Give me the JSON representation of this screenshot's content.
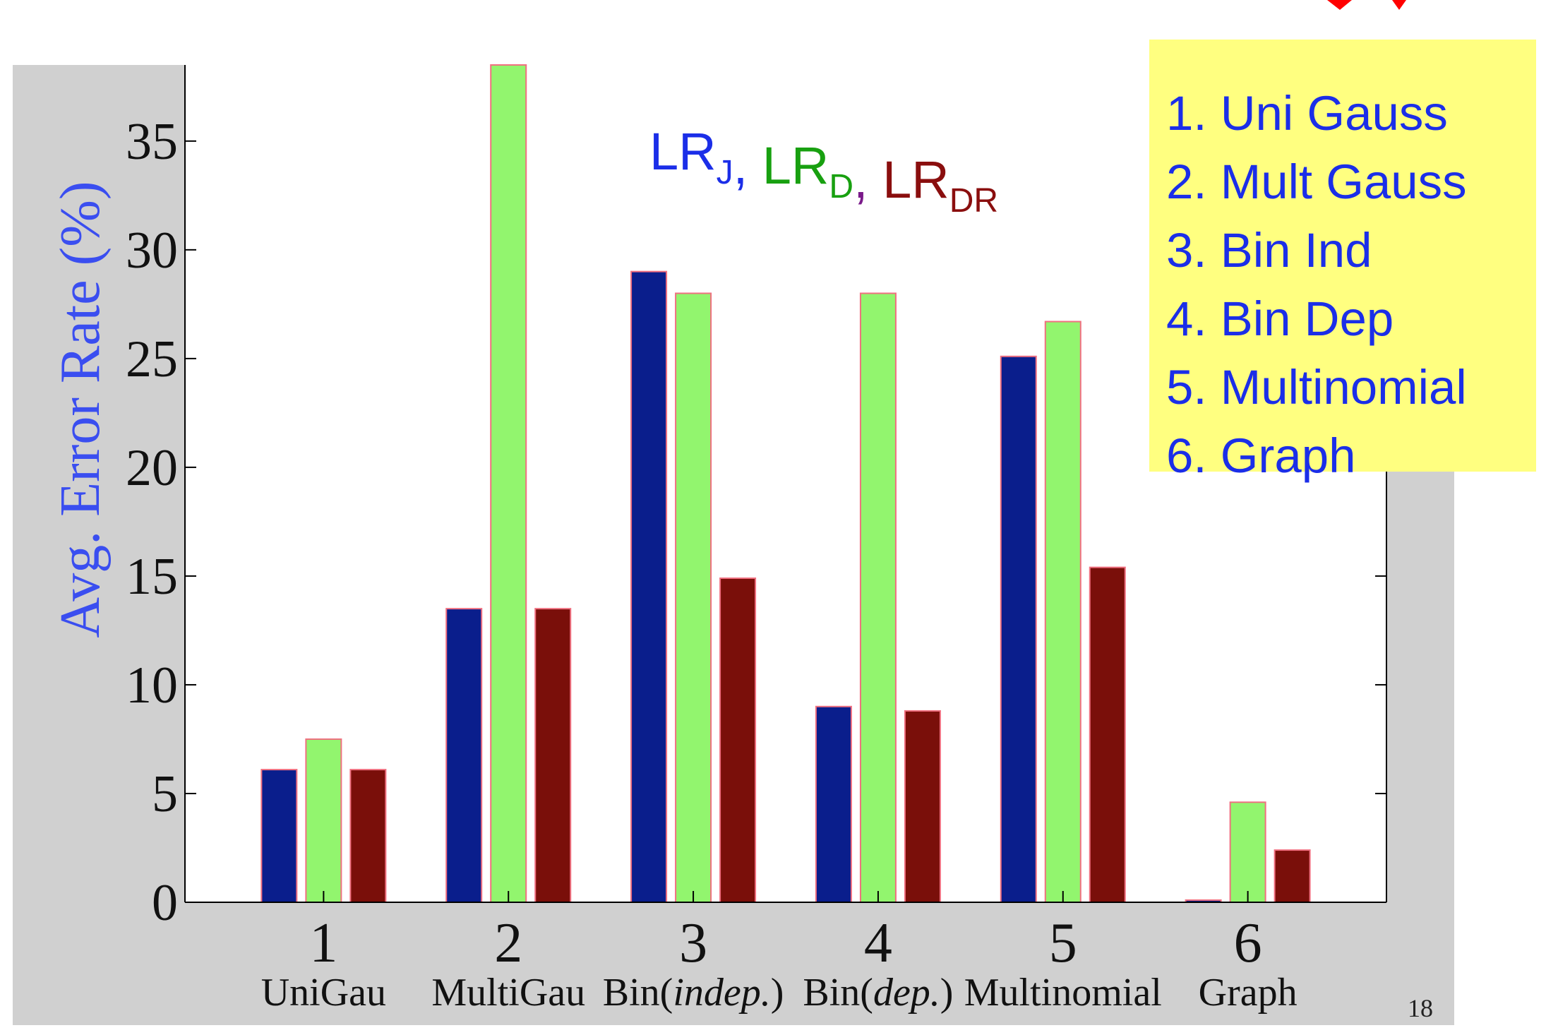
{
  "page_number": "18",
  "colors": {
    "joint": "#0a1e8c",
    "discriminative": "#92f56e",
    "dr": "#7a0f0a",
    "bar_edge": "#f07080",
    "panel": "#d0d0d0",
    "ylabel": "#3a4ef0",
    "legend_bg": "#ffff80",
    "legend_text": "#1b2ee8",
    "title_red": "#ff0000"
  },
  "chart_data": {
    "type": "bar",
    "categories": [
      "1",
      "2",
      "3",
      "4",
      "5",
      "6"
    ],
    "category_names": [
      "UniGau",
      "MultiGau",
      "Bin(indep.)",
      "Bin(dep.)",
      "Multinomial",
      "Graph"
    ],
    "series": [
      {
        "name": "LRJ",
        "values": [
          6.1,
          13.5,
          29.0,
          9.0,
          25.1,
          0.1
        ]
      },
      {
        "name": "LRD",
        "values": [
          7.5,
          38.5,
          28.0,
          28.0,
          26.7,
          4.6
        ]
      },
      {
        "name": "LRDR",
        "values": [
          6.1,
          13.5,
          14.9,
          8.8,
          15.4,
          2.4
        ]
      }
    ],
    "ylabel": "Avg. Error Rate (%)",
    "ylim": [
      0,
      38.5
    ],
    "yticks": [
      0,
      5,
      10,
      15,
      20,
      25,
      30,
      35
    ],
    "grid": false,
    "series_title": {
      "parts": [
        {
          "base": "LR",
          "sub": "J",
          "color": "#1b2ee8"
        },
        {
          "sep": ", ",
          "color": "#1b2ee8"
        },
        {
          "base": "LR",
          "sub": "D",
          "color": "#18a010"
        },
        {
          "sep": ", ",
          "color": "#7a1a8a"
        },
        {
          "base": "LR",
          "sub": "DR",
          "color": "#8a0e0e"
        }
      ]
    },
    "legend": {
      "placement": "top-right",
      "items": [
        "1. Uni Gauss",
        "2. Mult Gauss",
        "3. Bin Ind",
        "4. Bin Dep",
        "5. Multinomial",
        "6. Graph"
      ]
    }
  }
}
